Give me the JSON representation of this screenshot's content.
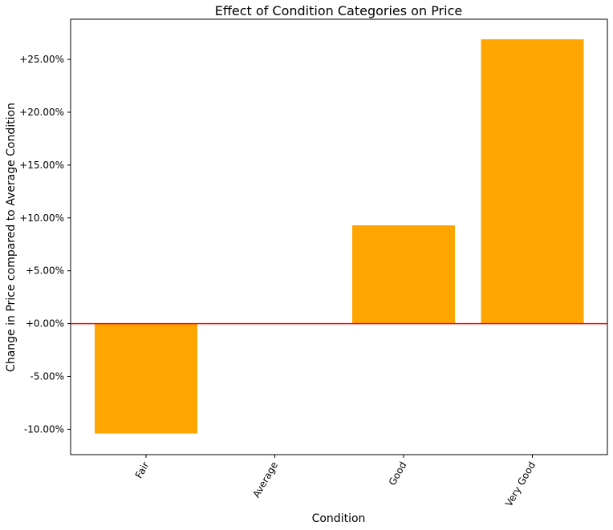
{
  "chart_data": {
    "type": "bar",
    "title": "Effect of Condition Categories on Price",
    "xlabel": "Condition",
    "ylabel": "Change in Price compared to Average Condition",
    "categories": [
      "Fair",
      "Average",
      "Good",
      "Very Good"
    ],
    "values": [
      -10.4,
      0.0,
      9.3,
      26.9
    ],
    "ylim": [
      -12.4,
      28.8
    ],
    "yticks": [
      -10,
      -5,
      0,
      5,
      10,
      15,
      20,
      25
    ],
    "ytick_labels": [
      "-10.00%",
      "-5.00%",
      "+0.00%",
      "+5.00%",
      "+10.00%",
      "+15.00%",
      "+20.00%",
      "+25.00%"
    ],
    "bar_color": "#ffa500",
    "reference_line": {
      "value": 0,
      "color": "#ff0000"
    },
    "grid": false
  }
}
